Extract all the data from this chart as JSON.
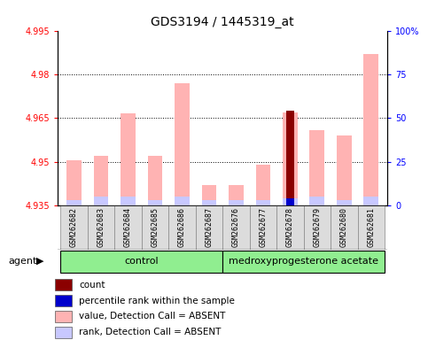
{
  "title": "GDS3194 / 1445319_at",
  "samples": [
    "GSM262682",
    "GSM262683",
    "GSM262684",
    "GSM262685",
    "GSM262686",
    "GSM262687",
    "GSM262676",
    "GSM262677",
    "GSM262678",
    "GSM262679",
    "GSM262680",
    "GSM262681"
  ],
  "ylim_left": [
    4.935,
    4.995
  ],
  "ylim_right": [
    0,
    100
  ],
  "yticks_left": [
    4.935,
    4.95,
    4.965,
    4.98,
    4.995
  ],
  "yticks_right": [
    0,
    25,
    50,
    75,
    100
  ],
  "value_absent": [
    4.9505,
    4.952,
    4.9665,
    4.952,
    4.977,
    4.942,
    4.942,
    4.949,
    4.967,
    4.961,
    4.959,
    4.987
  ],
  "rank_absent": [
    4.937,
    4.938,
    4.938,
    4.937,
    4.938,
    4.937,
    4.937,
    4.937,
    4.9375,
    4.938,
    4.937,
    4.938
  ],
  "count_top": [
    4.935,
    4.935,
    4.935,
    4.935,
    4.935,
    4.935,
    4.935,
    4.935,
    4.9675,
    4.935,
    4.935,
    4.935
  ],
  "percentile_top": [
    4.935,
    4.935,
    4.935,
    4.935,
    4.935,
    4.935,
    4.935,
    4.935,
    4.9375,
    4.935,
    4.935,
    4.935
  ],
  "bar_width": 0.55,
  "color_value_absent": "#FFB3B3",
  "color_rank_absent": "#C8C8FF",
  "color_count": "#8B0000",
  "color_percentile": "#0000CC",
  "n_control": 6,
  "n_treatment": 6,
  "control_label": "control",
  "treatment_label": "medroxyprogesterone acetate",
  "group_color": "#90EE90",
  "agent_label": "agent",
  "legend_items": [
    [
      "#8B0000",
      "count"
    ],
    [
      "#0000CC",
      "percentile rank within the sample"
    ],
    [
      "#FFB3B3",
      "value, Detection Call = ABSENT"
    ],
    [
      "#C8C8FF",
      "rank, Detection Call = ABSENT"
    ]
  ]
}
